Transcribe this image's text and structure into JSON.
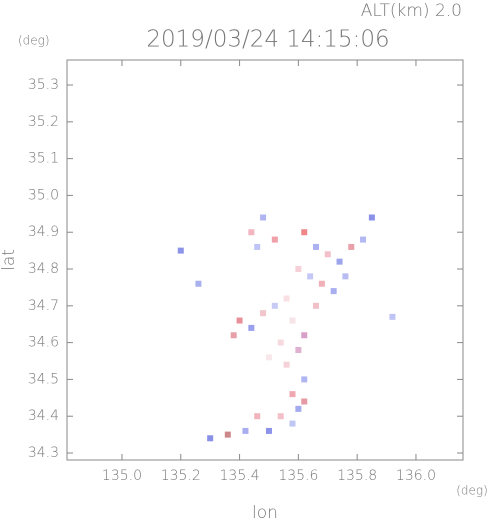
{
  "chart_data": {
    "type": "scatter",
    "title": "2019/03/24 14:15:06",
    "subtitle": "ALT(km) 2.0",
    "y_unit": "(deg)",
    "x_unit": "(deg)",
    "x_label": "lon",
    "y_label": "lat",
    "xlim": [
      134.813,
      136.16
    ],
    "ylim": [
      34.281,
      35.368
    ],
    "xticks": [
      {
        "value": 135,
        "label": "135.0"
      },
      135.2,
      135.4,
      135.6,
      135.8,
      {
        "value": 136,
        "label": "136.0"
      }
    ],
    "yticks": [
      34.3,
      34.4,
      34.5,
      34.6,
      34.7,
      34.8,
      34.9,
      {
        "value": 35,
        "label": "35.0"
      },
      35.1,
      35.2,
      35.3
    ],
    "x": [
      135.44,
      135.48,
      135.52,
      135.46,
      135.62,
      135.66,
      135.7,
      135.74,
      135.78,
      135.82,
      135.85,
      135.6,
      135.64,
      135.68,
      135.72,
      135.56,
      135.52,
      135.48,
      135.4,
      135.44,
      135.58,
      135.62,
      135.54,
      135.6,
      135.56,
      135.62,
      135.58,
      135.6,
      135.54,
      135.58,
      135.62,
      135.5,
      135.46,
      135.42,
      135.36,
      135.3,
      135.92,
      135.26,
      135.2,
      135.66,
      135.76,
      135.5,
      135.38
    ],
    "y": [
      34.9,
      34.94,
      34.88,
      34.86,
      34.9,
      34.86,
      34.84,
      34.82,
      34.86,
      34.88,
      34.94,
      34.8,
      34.78,
      34.76,
      34.74,
      34.72,
      34.7,
      34.68,
      34.66,
      34.64,
      34.66,
      34.62,
      34.6,
      34.58,
      34.54,
      34.5,
      34.46,
      34.42,
      34.4,
      34.38,
      34.44,
      34.36,
      34.4,
      34.36,
      34.35,
      34.34,
      34.67,
      34.76,
      34.85,
      34.7,
      34.78,
      34.56,
      34.62
    ],
    "point_colors": [
      "#f3b6c0",
      "#b0b4f0",
      "#f0a0a8",
      "#c0c4f4",
      "#e88",
      "#aab0f0",
      "#f2c0c8",
      "#9ca4ec",
      "#e9a0a8",
      "#b4b8f2",
      "#8a90e8",
      "#f6d0d6",
      "#c4c8f6",
      "#f0b0b8",
      "#a8aef0",
      "#f8e0e4",
      "#c8ccf4",
      "#f2c4cc",
      "#e8909a",
      "#9aa0ee",
      "#f7e4e8",
      "#d8a0c8",
      "#f6dadf",
      "#e0b0d0",
      "#f4d2d8",
      "#b0b6f2",
      "#f0a8b0",
      "#a4aaee",
      "#f4c0c8",
      "#c0c6f4",
      "#e49aa4",
      "#8c92ea",
      "#f0b4bc",
      "#a8aef0",
      "#c88",
      "#8890e8",
      "#c0c4f4",
      "#a8b0ee",
      "#8c94ea",
      "#f0c0c8",
      "#b8bcf2",
      "#f8e8ec",
      "#e8a0a8"
    ]
  }
}
